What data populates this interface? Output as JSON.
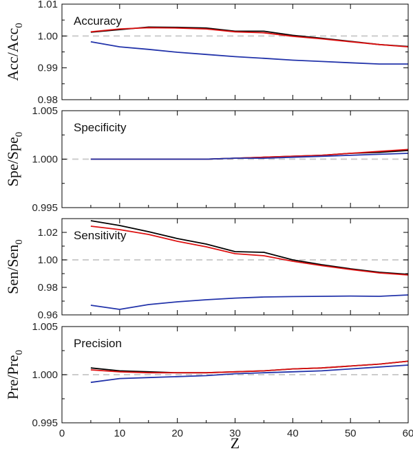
{
  "chart_data": [
    {
      "type": "line",
      "title": "Accuracy",
      "ylabel_main": "Acc/Acc",
      "ylabel_sub": "0",
      "xlabel": "",
      "ylim": [
        0.98,
        1.01
      ],
      "yticks": [
        0.98,
        0.99,
        1.0,
        1.01
      ],
      "ytick_labels": [
        "0.98",
        "0.99",
        "1.00",
        "1.01"
      ],
      "reference": 1.0,
      "x": [
        5,
        10,
        15,
        20,
        25,
        30,
        35,
        40,
        45,
        50,
        55,
        60
      ],
      "series": [
        {
          "name": "black",
          "color": "#000000",
          "values": [
            1.0012,
            1.002,
            1.0028,
            1.0027,
            1.0025,
            1.0015,
            1.0015,
            1.0002,
            0.9993,
            0.9983,
            0.9973,
            0.9967
          ]
        },
        {
          "name": "red",
          "color": "#dd1111",
          "values": [
            1.0013,
            1.0022,
            1.0026,
            1.0025,
            1.0022,
            1.0013,
            1.001,
            0.9999,
            0.9991,
            0.9982,
            0.9973,
            0.9966
          ]
        },
        {
          "name": "blue",
          "color": "#2233aa",
          "values": [
            0.9982,
            0.9966,
            0.9958,
            0.9949,
            0.9942,
            0.9935,
            0.993,
            0.9924,
            0.992,
            0.9916,
            0.9912,
            0.9912
          ]
        }
      ]
    },
    {
      "type": "line",
      "title": "Specificity",
      "ylabel_main": "Spe/Spe",
      "ylabel_sub": "0",
      "xlabel": "",
      "ylim": [
        0.995,
        1.005
      ],
      "yticks": [
        0.995,
        1.0,
        1.005
      ],
      "ytick_labels": [
        "0.995",
        "1.000",
        "1.005"
      ],
      "reference": 1.0,
      "x": [
        5,
        10,
        15,
        20,
        25,
        30,
        35,
        40,
        45,
        50,
        55,
        60
      ],
      "series": [
        {
          "name": "black",
          "color": "#000000",
          "values": [
            1.0,
            1.0,
            1.0,
            1.0,
            1.0,
            1.0001,
            1.0002,
            1.0003,
            1.0004,
            1.0006,
            1.0007,
            1.0009
          ]
        },
        {
          "name": "red",
          "color": "#dd1111",
          "values": [
            1.0,
            1.0,
            1.0,
            1.0,
            1.0,
            1.0001,
            1.0002,
            1.0003,
            1.0004,
            1.0006,
            1.0008,
            1.001
          ]
        },
        {
          "name": "blue",
          "color": "#2233aa",
          "values": [
            1.0,
            1.0,
            1.0,
            1.0,
            1.0,
            1.0001,
            1.0001,
            1.0002,
            1.0003,
            1.0004,
            1.0005,
            1.0006
          ]
        }
      ]
    },
    {
      "type": "line",
      "title": "Sensitivity",
      "ylabel_main": "Sen/Sen",
      "ylabel_sub": "0",
      "xlabel": "",
      "ylim": [
        0.96,
        1.03
      ],
      "yticks": [
        0.96,
        0.98,
        1.0,
        1.02
      ],
      "ytick_labels": [
        "0.96",
        "0.98",
        "1.00",
        "1.02"
      ],
      "reference": 1.0,
      "x": [
        5,
        10,
        15,
        20,
        25,
        30,
        35,
        40,
        45,
        50,
        55,
        60
      ],
      "series": [
        {
          "name": "black",
          "color": "#000000",
          "values": [
            1.0285,
            1.025,
            1.0205,
            1.0155,
            1.0115,
            1.006,
            1.0055,
            1.0,
            0.9965,
            0.9935,
            0.991,
            0.9895
          ]
        },
        {
          "name": "red",
          "color": "#dd1111",
          "values": [
            1.0245,
            1.022,
            1.0185,
            1.0135,
            1.0095,
            1.0045,
            1.003,
            0.999,
            0.9958,
            0.993,
            0.9905,
            0.989
          ]
        },
        {
          "name": "blue",
          "color": "#2233aa",
          "values": [
            0.967,
            0.964,
            0.9675,
            0.9695,
            0.971,
            0.9722,
            0.973,
            0.9733,
            0.9735,
            0.9737,
            0.9735,
            0.9745
          ]
        }
      ]
    },
    {
      "type": "line",
      "title": "Precision",
      "ylabel_main": "Pre/Pre",
      "ylabel_sub": "0",
      "xlabel": "Z",
      "ylim": [
        0.995,
        1.005
      ],
      "yticks": [
        0.995,
        1.0,
        1.005
      ],
      "ytick_labels": [
        "0.995",
        "1.000",
        "1.005"
      ],
      "xticks": [
        0,
        10,
        20,
        30,
        40,
        50,
        60
      ],
      "xtick_labels": [
        "0",
        "10",
        "20",
        "30",
        "40",
        "50",
        "60"
      ],
      "reference": 1.0,
      "x": [
        5,
        10,
        15,
        20,
        25,
        30,
        35,
        40,
        45,
        50,
        55,
        60
      ],
      "series": [
        {
          "name": "black",
          "color": "#000000",
          "values": [
            1.0007,
            1.0004,
            1.0003,
            1.0002,
            1.0002,
            1.0003,
            1.0004,
            1.0006,
            1.0007,
            1.0009,
            1.0011,
            1.0014
          ]
        },
        {
          "name": "red",
          "color": "#dd1111",
          "values": [
            1.0005,
            1.0003,
            1.0002,
            1.0002,
            1.0002,
            1.0003,
            1.0004,
            1.0006,
            1.0007,
            1.0009,
            1.0011,
            1.0014
          ]
        },
        {
          "name": "blue",
          "color": "#2233aa",
          "values": [
            0.9992,
            0.9996,
            0.9997,
            0.9998,
            0.9999,
            1.0001,
            1.0002,
            1.0003,
            1.0004,
            1.0006,
            1.0008,
            1.001
          ]
        }
      ]
    }
  ],
  "xlim": [
    0,
    60
  ]
}
